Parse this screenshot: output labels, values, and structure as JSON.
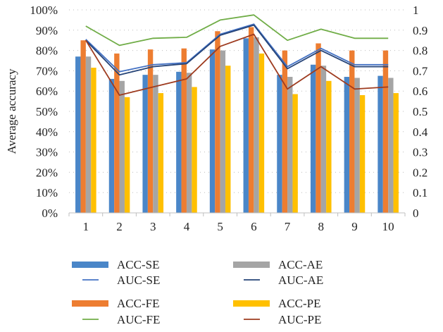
{
  "chart_data": {
    "type": "bar",
    "title": "",
    "xlabel": "",
    "ylabel": "Average accuracy",
    "categories": [
      "1",
      "2",
      "3",
      "4",
      "5",
      "6",
      "7",
      "8",
      "9",
      "10"
    ],
    "y_left": {
      "range": [
        0,
        100
      ],
      "ticks": [
        "0%",
        "10%",
        "20%",
        "30%",
        "40%",
        "50%",
        "60%",
        "70%",
        "80%",
        "90%",
        "100%"
      ]
    },
    "y_right": {
      "range": [
        0,
        1
      ],
      "ticks": [
        "0",
        "0.1",
        "0.2",
        "0.3",
        "0.4",
        "0.5",
        "0.6",
        "0.7",
        "0.8",
        "0.9",
        "1"
      ]
    },
    "grid": "dotted horizontal",
    "legend_placement": "bottom",
    "bar_series": [
      {
        "name": "ACC-SE",
        "color": "#4a86c8",
        "values": [
          77,
          66,
          68,
          69.5,
          80.5,
          86,
          68,
          73,
          67,
          67.5
        ]
      },
      {
        "name": "ACC-FE",
        "color": "#ed7d31",
        "values": [
          85,
          78.5,
          80.5,
          81,
          89.5,
          91.5,
          80,
          83.5,
          80,
          80
        ]
      },
      {
        "name": "ACC-AE",
        "color": "#a5a5a5",
        "values": [
          77,
          65,
          68,
          69,
          80,
          86.5,
          67,
          72.5,
          66.5,
          66.5
        ]
      },
      {
        "name": "ACC-PE",
        "color": "#ffc000",
        "values": [
          71.5,
          57,
          59,
          62,
          72.5,
          78.5,
          58.5,
          65,
          58,
          59
        ]
      }
    ],
    "line_series": [
      {
        "name": "AUC-SE",
        "color": "#4472c4",
        "values": [
          0.855,
          0.695,
          0.73,
          0.74,
          0.88,
          0.93,
          0.72,
          0.81,
          0.73,
          0.73
        ]
      },
      {
        "name": "AUC-FE",
        "color": "#70ad47",
        "values": [
          0.92,
          0.825,
          0.86,
          0.865,
          0.95,
          0.975,
          0.85,
          0.905,
          0.86,
          0.86
        ]
      },
      {
        "name": "AUC-AE",
        "color": "#264478",
        "values": [
          0.85,
          0.68,
          0.72,
          0.735,
          0.875,
          0.925,
          0.71,
          0.8,
          0.72,
          0.72
        ]
      },
      {
        "name": "AUC-PE",
        "color": "#9e3b1f",
        "values": [
          0.85,
          0.58,
          0.62,
          0.66,
          0.82,
          0.88,
          0.61,
          0.72,
          0.61,
          0.62
        ]
      }
    ],
    "legend": [
      {
        "label": "ACC-SE",
        "kind": "bar",
        "color": "#4a86c8"
      },
      {
        "label": "AUC-SE",
        "kind": "line",
        "color": "#4472c4"
      },
      {
        "label": "ACC-FE",
        "kind": "bar",
        "color": "#ed7d31"
      },
      {
        "label": "AUC-FE",
        "kind": "line",
        "color": "#70ad47"
      },
      {
        "label": "ACC-AE",
        "kind": "bar",
        "color": "#a5a5a5"
      },
      {
        "label": "AUC-AE",
        "kind": "line",
        "color": "#264478"
      },
      {
        "label": "ACC-PE",
        "kind": "bar",
        "color": "#ffc000"
      },
      {
        "label": "AUC-PE",
        "kind": "line",
        "color": "#9e3b1f"
      }
    ]
  }
}
